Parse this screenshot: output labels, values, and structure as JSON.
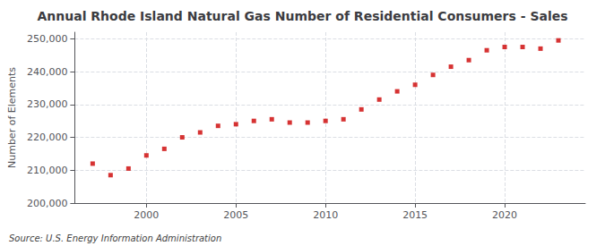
{
  "chart_data": {
    "type": "scatter",
    "title": "Annual Rhode Island Natural Gas Number of Residential Consumers - Sales",
    "ylabel": "Number of Elements",
    "source": "Source: U.S. Energy Information Administration",
    "x": [
      1997,
      1998,
      1999,
      2000,
      2001,
      2002,
      2003,
      2004,
      2005,
      2006,
      2007,
      2008,
      2009,
      2010,
      2011,
      2012,
      2013,
      2014,
      2015,
      2016,
      2017,
      2018,
      2019,
      2020,
      2021,
      2022,
      2023
    ],
    "values": [
      212000,
      208500,
      210500,
      214500,
      216500,
      220000,
      221500,
      223500,
      224000,
      225000,
      225500,
      224500,
      224500,
      225000,
      225500,
      228500,
      231500,
      234000,
      236000,
      239000,
      241500,
      243500,
      246500,
      247500,
      247500,
      247000,
      249500
    ],
    "color": "#cc0000",
    "marker": "square",
    "xlim": [
      1996.0,
      2024.5
    ],
    "ylim": [
      200000,
      252000
    ],
    "xticks": [
      2000,
      2005,
      2010,
      2015,
      2020
    ],
    "yticks": [
      {
        "value": 200000,
        "label": "200,000"
      },
      {
        "value": 210000,
        "label": "210,000"
      },
      {
        "value": 220000,
        "label": "220,000"
      },
      {
        "value": 230000,
        "label": "230,000"
      },
      {
        "value": 240000,
        "label": "240,000"
      },
      {
        "value": 250000,
        "label": "250,000"
      }
    ],
    "grid": true
  }
}
